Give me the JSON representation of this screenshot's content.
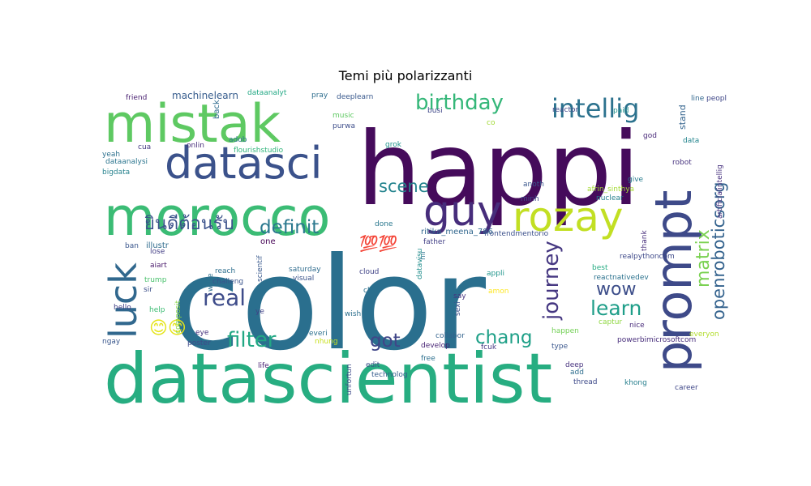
{
  "chart_data": {
    "type": "wordcloud",
    "title": "Temi più polarizzanti",
    "palette": "viridis",
    "words": [
      {
        "text": "color",
        "color": "#2a6f8e"
      },
      {
        "text": "happi",
        "color": "#450b5b"
      },
      {
        "text": "datascientist",
        "color": "#27ad81"
      },
      {
        "text": "morocco",
        "color": "#3bbc75"
      },
      {
        "text": "mistak",
        "color": "#5ec962"
      },
      {
        "text": "datasci",
        "color": "#3b528b"
      },
      {
        "text": "prompt",
        "color": "#3e4a89"
      },
      {
        "text": "rozay",
        "color": "#c2df23"
      },
      {
        "text": "guy",
        "color": "#472d7b"
      },
      {
        "text": "luck",
        "color": "#31688e"
      },
      {
        "text": "intellig",
        "color": "#2c728e"
      },
      {
        "text": "birthday",
        "color": "#35b779"
      },
      {
        "text": "openroboticsorg",
        "color": "#33628d"
      },
      {
        "text": "matrix",
        "color": "#7ad151"
      },
      {
        "text": "journey",
        "color": "#453781"
      },
      {
        "text": "definit",
        "color": "#2a788e"
      },
      {
        "text": "real",
        "color": "#3e4c8a"
      },
      {
        "text": "filter",
        "color": "#22a884"
      },
      {
        "text": "scene",
        "color": "#25848e"
      },
      {
        "text": "learn",
        "color": "#1f9e89"
      },
      {
        "text": "chang",
        "color": "#1fa088"
      },
      {
        "text": "got",
        "color": "#404688"
      },
      {
        "text": "wow",
        "color": "#3d4e8a"
      },
      {
        "text": "ยินดีต้อนรับ",
        "color": "#3b528b"
      },
      {
        "text": "😊😊",
        "color": "#e5e419"
      },
      {
        "text": "💯💯",
        "color": "#b5de2b"
      },
      {
        "text": "machinelearn",
        "color": "#365c8d"
      },
      {
        "text": "dataanalyt",
        "color": "#22a884"
      },
      {
        "text": "friend",
        "color": "#481f70"
      },
      {
        "text": "pray",
        "color": "#2e6e8e"
      },
      {
        "text": "busi",
        "color": "#3f4889"
      },
      {
        "text": "reactor",
        "color": "#3f4788"
      },
      {
        "text": "paid",
        "color": "#21918c"
      },
      {
        "text": "back",
        "color": "#2f6b8e"
      },
      {
        "text": "adob",
        "color": "#2c728e"
      },
      {
        "text": "music",
        "color": "#5ec962"
      },
      {
        "text": "onlin",
        "color": "#472c7a"
      },
      {
        "text": "flourishstudio",
        "color": "#31b57b"
      },
      {
        "text": "purwa",
        "color": "#3d4d8a"
      },
      {
        "text": "grok",
        "color": "#20938c"
      },
      {
        "text": "co",
        "color": "#a2da37"
      },
      {
        "text": "god",
        "color": "#482979"
      },
      {
        "text": "stand",
        "color": "#33638d"
      },
      {
        "text": "data",
        "color": "#25858e"
      },
      {
        "text": "robot",
        "color": "#46327e"
      },
      {
        "text": "cua",
        "color": "#453781"
      },
      {
        "text": "yeah",
        "color": "#2d718e"
      },
      {
        "text": "dataanalysi",
        "color": "#2b758e"
      },
      {
        "text": "bigdata",
        "color": "#26828e"
      },
      {
        "text": "anoth",
        "color": "#39568c"
      },
      {
        "text": "afrin_sinthya",
        "color": "#a5db36"
      },
      {
        "text": "give",
        "color": "#287c8e"
      },
      {
        "text": "minh",
        "color": "#3f4889"
      },
      {
        "text": "nuclear",
        "color": "#26818e"
      },
      {
        "text": "artificialintellig",
        "color": "#46307e"
      },
      {
        "text": "thank",
        "color": "#472e7c"
      },
      {
        "text": "done",
        "color": "#2a788e"
      },
      {
        "text": "ritika_meena_786",
        "color": "#31678e"
      },
      {
        "text": "frontendmentorio",
        "color": "#3c508b"
      },
      {
        "text": "one",
        "color": "#440154"
      },
      {
        "text": "father",
        "color": "#424086"
      },
      {
        "text": "hii",
        "color": "#2c738e"
      },
      {
        "text": "illustr",
        "color": "#2f6c8e"
      },
      {
        "text": "ban",
        "color": "#39558c"
      },
      {
        "text": "lose",
        "color": "#433e85"
      },
      {
        "text": "aiart",
        "color": "#48186a"
      },
      {
        "text": "reach",
        "color": "#2e6f8e"
      },
      {
        "text": "challeng",
        "color": "#3a548c"
      },
      {
        "text": "trump",
        "color": "#4ac16d"
      },
      {
        "text": "sir",
        "color": "#3c4f8a"
      },
      {
        "text": "write",
        "color": "#2d708e"
      },
      {
        "text": "scientif",
        "color": "#38588c"
      },
      {
        "text": "saturday",
        "color": "#2f6c8e"
      },
      {
        "text": "visual",
        "color": "#3a538b"
      },
      {
        "text": "cloud",
        "color": "#414487"
      },
      {
        "text": "datavisu",
        "color": "#218e8d"
      },
      {
        "text": "appli",
        "color": "#1f958b"
      },
      {
        "text": "best",
        "color": "#25ab82"
      },
      {
        "text": "reactnativedev",
        "color": "#2c728e"
      },
      {
        "text": "realpythoncom",
        "color": "#3e4989"
      },
      {
        "text": "amon",
        "color": "#fde725"
      },
      {
        "text": "cho",
        "color": "#2c718e"
      },
      {
        "text": "hello",
        "color": "#423f85"
      },
      {
        "text": "help",
        "color": "#3dbc74"
      },
      {
        "text": "ye",
        "color": "#414287"
      },
      {
        "text": "wish",
        "color": "#2d708e"
      },
      {
        "text": "say",
        "color": "#46337f"
      },
      {
        "text": "sexi",
        "color": "#3b518b"
      },
      {
        "text": "captur",
        "color": "#90d743"
      },
      {
        "text": "nice",
        "color": "#472a7a"
      },
      {
        "text": "va",
        "color": "#2d708e"
      },
      {
        "text": "happen",
        "color": "#73d056"
      },
      {
        "text": "composit",
        "color": "#8bd646"
      },
      {
        "text": "eye",
        "color": "#46327e"
      },
      {
        "text": "everi",
        "color": "#2c718e"
      },
      {
        "text": "nhung",
        "color": "#c8e020"
      },
      {
        "text": "collabor",
        "color": "#33638d"
      },
      {
        "text": "develop",
        "color": "#482475"
      },
      {
        "text": "poster",
        "color": "#3e4a89"
      },
      {
        "text": "ngay",
        "color": "#39568c"
      },
      {
        "text": "everyon",
        "color": "#b2dd2d"
      },
      {
        "text": "type",
        "color": "#39568c"
      },
      {
        "text": "powerbimicrosoftcom",
        "color": "#472d7b"
      },
      {
        "text": "fcuk",
        "color": "#453882"
      },
      {
        "text": "free",
        "color": "#2d708e"
      },
      {
        "text": "edit",
        "color": "#3c4f8a"
      },
      {
        "text": "technolog",
        "color": "#365d8d"
      },
      {
        "text": "deep",
        "color": "#46327e"
      },
      {
        "text": "add",
        "color": "#2e6d8e"
      },
      {
        "text": "thread",
        "color": "#3e4a89"
      },
      {
        "text": "khong",
        "color": "#277f8e"
      },
      {
        "text": "career",
        "color": "#3f4788"
      },
      {
        "text": "life",
        "color": "#482173"
      },
      {
        "text": "unfortun",
        "color": "#3e4a89"
      },
      {
        "text": "deeplearn",
        "color": "#38588c"
      },
      {
        "text": "peopl",
        "color": "#3f4788"
      },
      {
        "text": "line",
        "color": "#31678e"
      },
      {
        "text": "🌸",
        "color": "#46075a"
      }
    ]
  }
}
